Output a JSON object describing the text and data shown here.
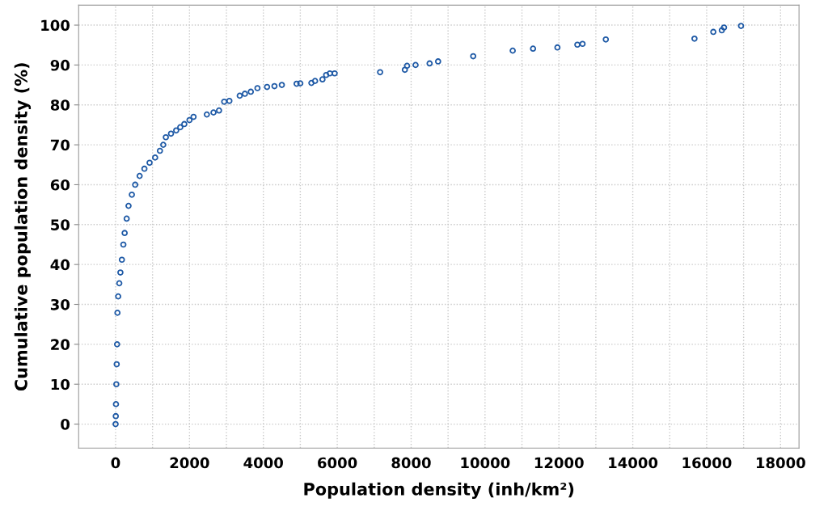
{
  "chart_data": {
    "type": "scatter",
    "xlabel": "Population density (inh/km²)",
    "ylabel": "Cumulative population density (%)",
    "xlim": [
      -1000,
      18500
    ],
    "ylim": [
      -6,
      105
    ],
    "xticks": [
      0,
      {
        "value": 1000,
        "label": null
      },
      2000,
      {
        "value": 3000,
        "label": null
      },
      4000,
      {
        "value": 5000,
        "label": null
      },
      6000,
      {
        "value": 7000,
        "label": null
      },
      8000,
      {
        "value": 9000,
        "label": null
      },
      10000,
      {
        "value": 11000,
        "label": null
      },
      12000,
      {
        "value": 13000,
        "label": null
      },
      14000,
      {
        "value": 15000,
        "label": null
      },
      16000,
      {
        "value": 17000,
        "label": null
      },
      18000
    ],
    "yticks": [
      0,
      10,
      20,
      30,
      40,
      50,
      60,
      70,
      80,
      90,
      100
    ],
    "grid": true,
    "marker": "circle",
    "series": [
      {
        "color": "#1f5aa6",
        "x": [
          0,
          5,
          10,
          20,
          30,
          40,
          50,
          70,
          100,
          130,
          170,
          210,
          245,
          300,
          350,
          440,
          530,
          650,
          780,
          920,
          1070,
          1200,
          1290,
          1360,
          1500,
          1640,
          1750,
          1860,
          2000,
          2110,
          2470,
          2650,
          2800,
          2940,
          3080,
          3360,
          3500,
          3660,
          3840,
          4100,
          4300,
          4500,
          4900,
          5000,
          5300,
          5400,
          5600,
          5700,
          5800,
          5930,
          7160,
          7830,
          7890,
          8120,
          8500,
          8730,
          9680,
          10750,
          11300,
          11960,
          12500,
          12640,
          13270,
          15670,
          16180,
          16410,
          16470,
          16930
        ],
        "values": [
          0,
          2,
          5,
          10,
          15,
          20,
          27.9,
          32,
          35.3,
          38,
          41.2,
          45,
          47.9,
          51.5,
          54.7,
          57.5,
          60,
          62.2,
          64,
          65.5,
          66.8,
          68.5,
          70,
          71.9,
          72.8,
          73.6,
          74.4,
          75.2,
          76.2,
          77,
          77.6,
          78.1,
          78.6,
          80.8,
          81,
          82.3,
          82.8,
          83.3,
          84.2,
          84.5,
          84.7,
          85,
          85.3,
          85.4,
          85.5,
          86,
          86.4,
          87.5,
          87.9,
          87.9,
          88.2,
          88.8,
          89.8,
          90.0,
          90.4,
          90.9,
          92.2,
          93.6,
          94.1,
          94.4,
          95.1,
          95.3,
          96.4,
          96.6,
          98.3,
          98.7,
          99.4,
          99.8
        ]
      }
    ]
  }
}
